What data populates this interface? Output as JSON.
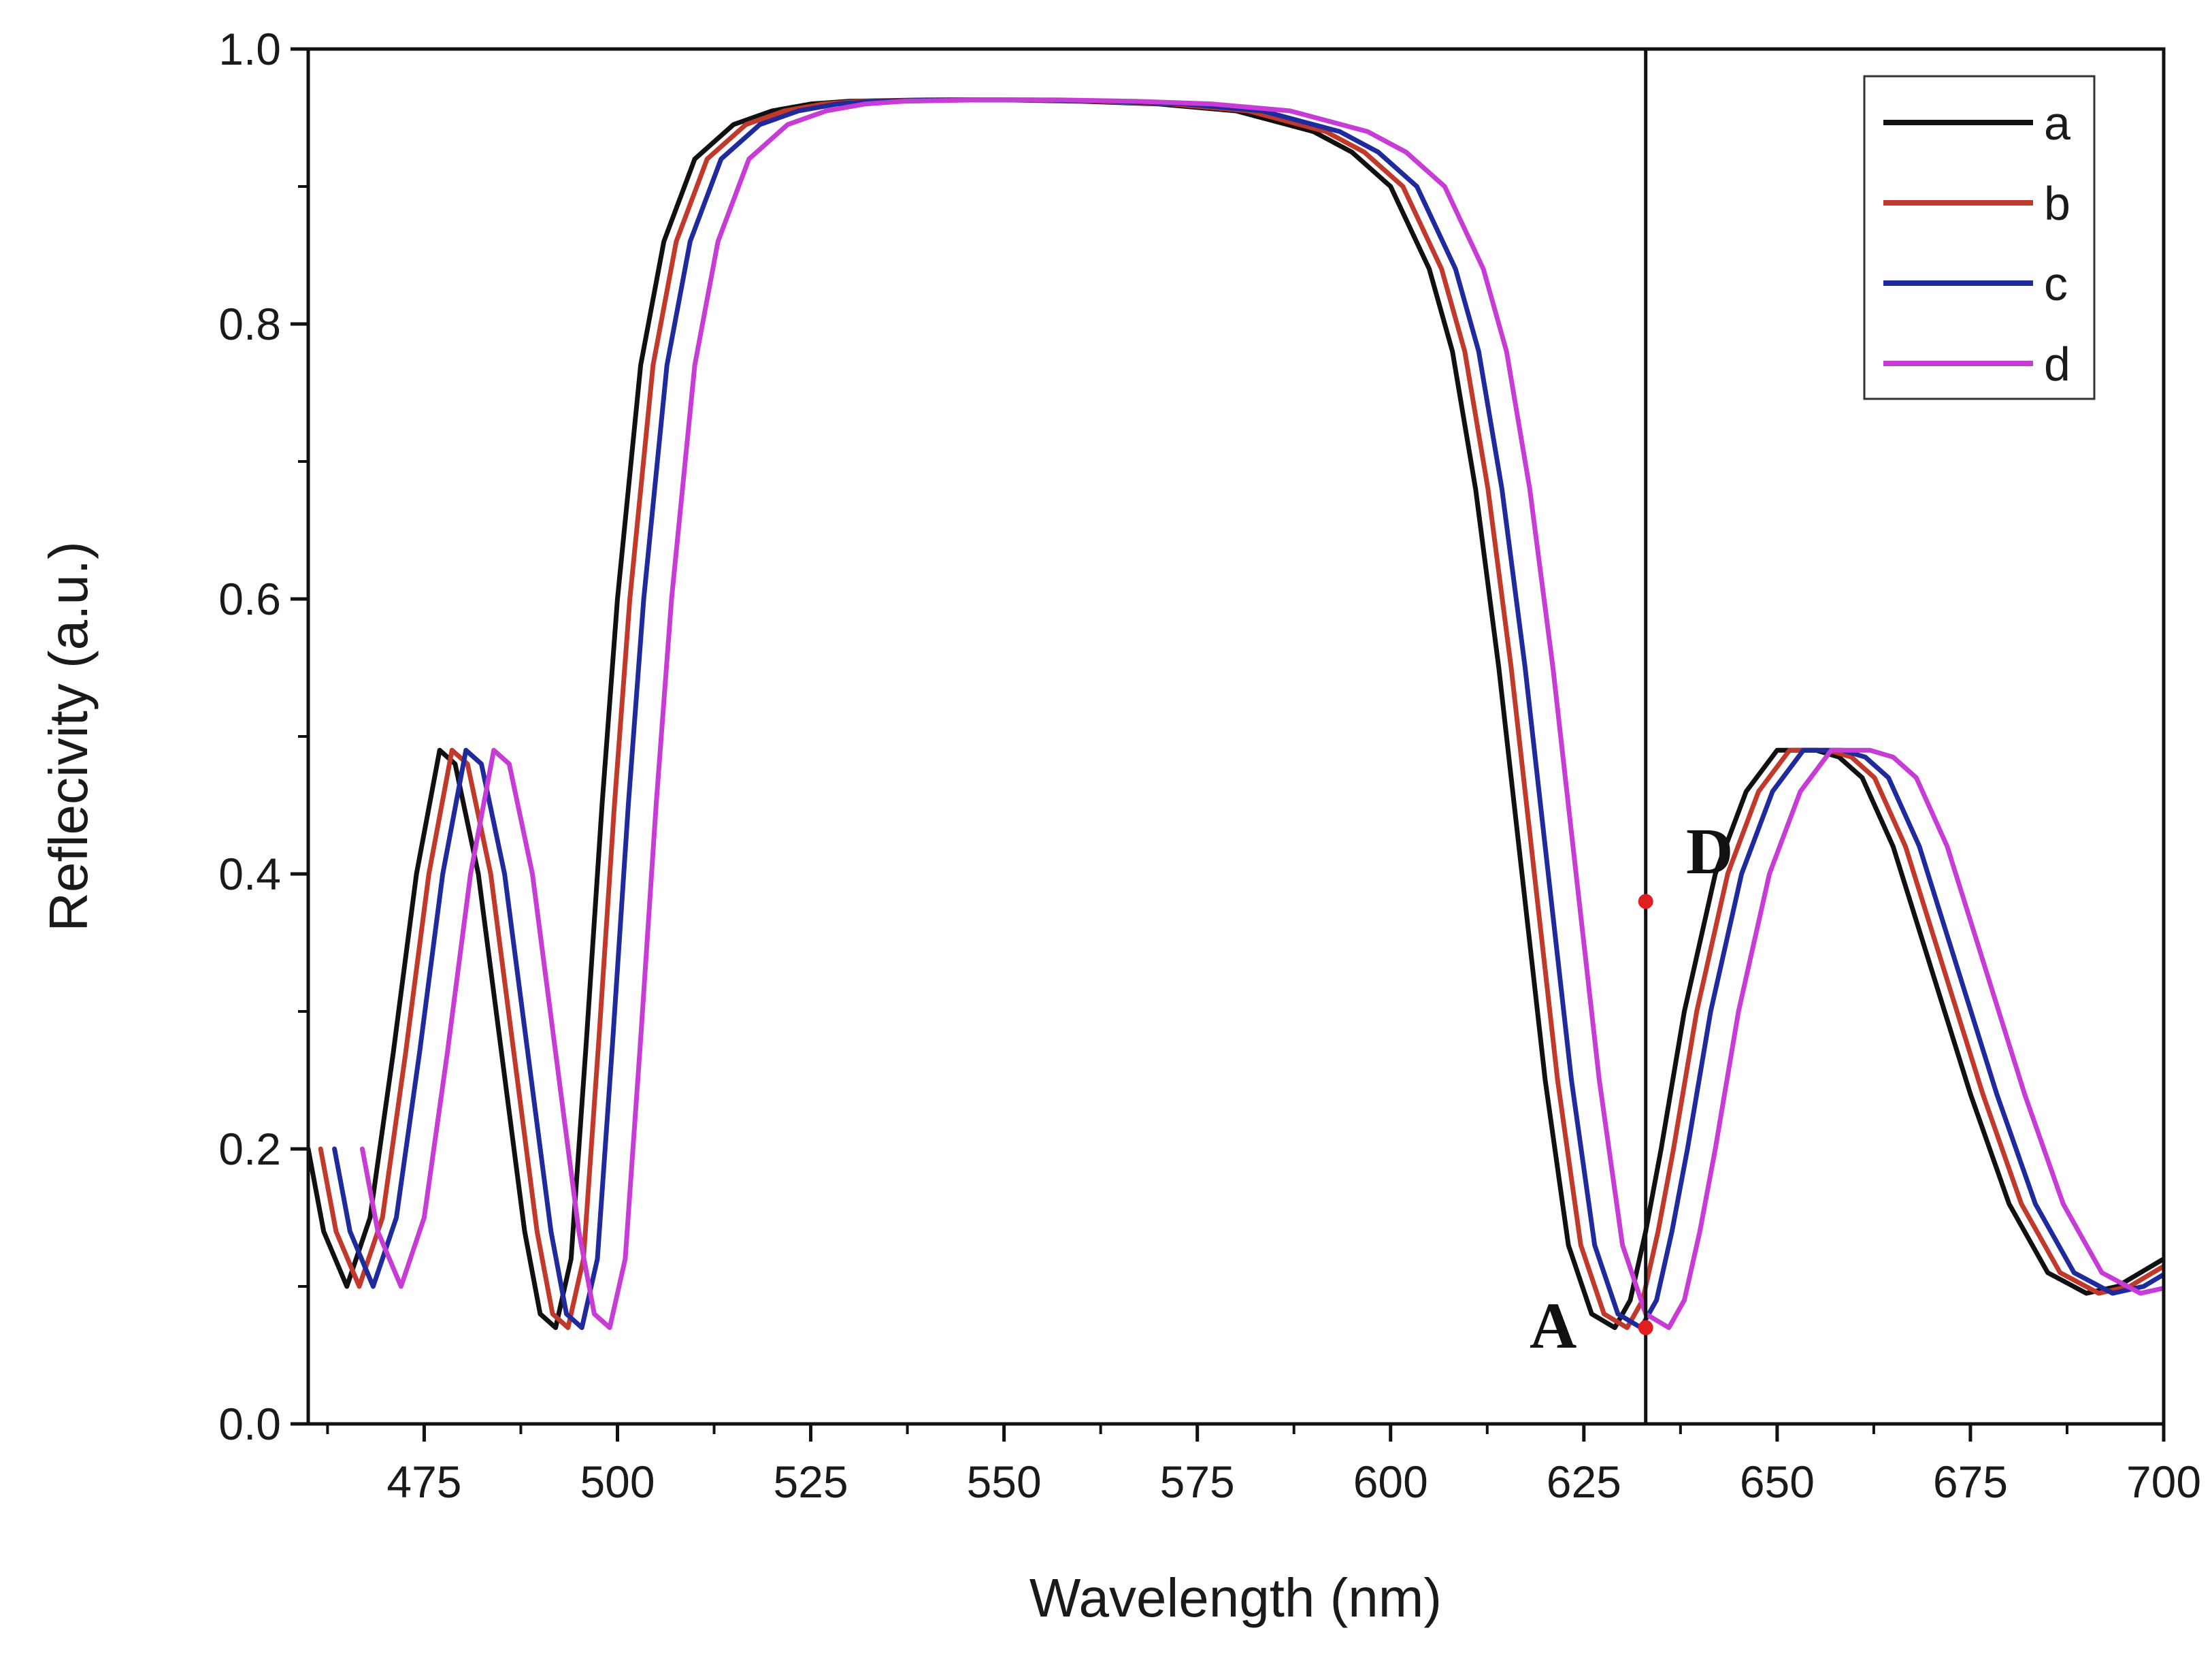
{
  "chart_data": {
    "type": "line",
    "title": "",
    "xlabel": "Wavelength (nm)",
    "ylabel": "Reflecivity (a.u.)",
    "xlim": [
      460,
      700
    ],
    "ylim": [
      0.0,
      1.0
    ],
    "x_ticks": [
      475,
      500,
      525,
      550,
      575,
      600,
      625,
      650,
      675,
      700
    ],
    "x_tick_labels": [
      "475",
      "500",
      "525",
      "550",
      "575",
      "600",
      "625",
      "650",
      "675",
      "700"
    ],
    "y_ticks": [
      0.0,
      0.2,
      0.4,
      0.6,
      0.8,
      1.0
    ],
    "y_tick_labels": [
      "0.0",
      "0.2",
      "0.4",
      "0.6",
      "0.8",
      "1.0"
    ],
    "grid": false,
    "legend_position": "top-right",
    "series": [
      {
        "name": "a",
        "color": "#111111",
        "shift": 0
      },
      {
        "name": "b",
        "color": "#c0392b",
        "shift": 1.6
      },
      {
        "name": "c",
        "color": "#1f2a9c",
        "shift": 3.4
      },
      {
        "name": "d",
        "color": "#c83cd6",
        "shift": 7.0
      }
    ],
    "base_curve": {
      "x": [
        460,
        462,
        465,
        468,
        471,
        474,
        477,
        479,
        482,
        485,
        488,
        490,
        492,
        494,
        496,
        498,
        500,
        503,
        506,
        510,
        515,
        520,
        525,
        530,
        540,
        550,
        560,
        570,
        580,
        590,
        595,
        600,
        605,
        608,
        611,
        614,
        617,
        620,
        623,
        626,
        629,
        631,
        633,
        635,
        638,
        642,
        646,
        650,
        655,
        658,
        661,
        665,
        670,
        675,
        680,
        685,
        690,
        694,
        697,
        700
      ],
      "y": [
        0.2,
        0.14,
        0.1,
        0.15,
        0.27,
        0.4,
        0.49,
        0.48,
        0.4,
        0.27,
        0.14,
        0.08,
        0.07,
        0.12,
        0.28,
        0.45,
        0.6,
        0.77,
        0.86,
        0.92,
        0.945,
        0.955,
        0.96,
        0.962,
        0.963,
        0.963,
        0.962,
        0.96,
        0.955,
        0.94,
        0.925,
        0.9,
        0.84,
        0.78,
        0.68,
        0.55,
        0.4,
        0.25,
        0.13,
        0.08,
        0.07,
        0.09,
        0.14,
        0.2,
        0.3,
        0.4,
        0.46,
        0.49,
        0.49,
        0.485,
        0.47,
        0.42,
        0.33,
        0.24,
        0.16,
        0.11,
        0.095,
        0.1,
        0.11,
        0.12
      ]
    },
    "vertical_line_x": 633,
    "points": [
      {
        "label": "D",
        "x": 633,
        "y": 0.38,
        "color": "#e02020"
      },
      {
        "label": "A",
        "x": 633,
        "y": 0.07,
        "color": "#e02020"
      }
    ]
  }
}
